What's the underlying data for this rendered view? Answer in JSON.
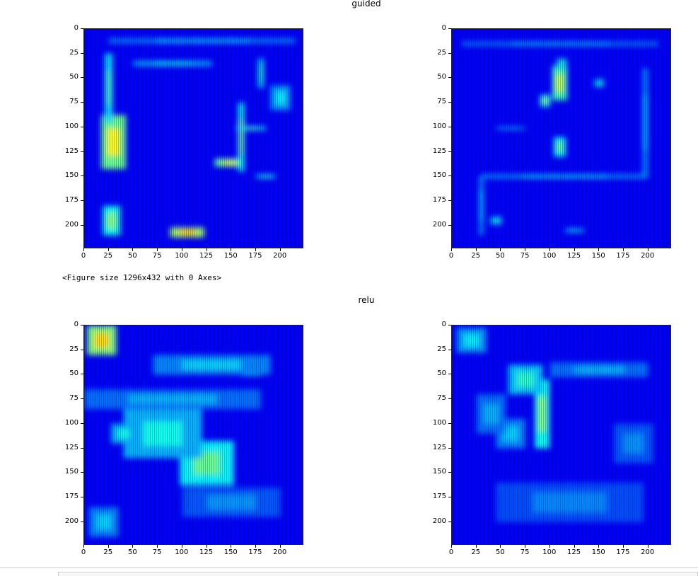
{
  "figures": [
    {
      "title": "guided"
    },
    {
      "title": "relu"
    }
  ],
  "output_text": "<Figure size 1296x432 with 0 Axes>",
  "chart_data": [
    {
      "type": "heatmap",
      "figure": "guided",
      "panel": "left",
      "xlim": [
        0,
        224
      ],
      "ylim": [
        224,
        0
      ],
      "xticks": [
        "0",
        "25",
        "50",
        "75",
        "100",
        "125",
        "150",
        "175",
        "200"
      ],
      "yticks": [
        "0",
        "25",
        "50",
        "75",
        "100",
        "125",
        "150",
        "175",
        "200"
      ],
      "colormap": "jet",
      "hotspots": [
        {
          "x": 30,
          "y": 115,
          "w": 25,
          "h": 55,
          "v": 0.8
        },
        {
          "x": 25,
          "y": 60,
          "w": 8,
          "h": 70,
          "v": 0.5
        },
        {
          "x": 28,
          "y": 195,
          "w": 18,
          "h": 30,
          "v": 0.6
        },
        {
          "x": 105,
          "y": 207,
          "w": 35,
          "h": 10,
          "v": 0.9
        },
        {
          "x": 148,
          "y": 136,
          "w": 30,
          "h": 8,
          "v": 0.75
        },
        {
          "x": 160,
          "y": 110,
          "w": 6,
          "h": 70,
          "v": 0.6
        },
        {
          "x": 170,
          "y": 101,
          "w": 30,
          "h": 4,
          "v": 0.5
        },
        {
          "x": 185,
          "y": 150,
          "w": 20,
          "h": 4,
          "v": 0.45
        },
        {
          "x": 90,
          "y": 35,
          "w": 80,
          "h": 5,
          "v": 0.4
        },
        {
          "x": 180,
          "y": 45,
          "w": 6,
          "h": 30,
          "v": 0.45
        },
        {
          "x": 200,
          "y": 70,
          "w": 20,
          "h": 25,
          "v": 0.35
        },
        {
          "x": 120,
          "y": 12,
          "w": 190,
          "h": 5,
          "v": 0.3
        }
      ]
    },
    {
      "type": "heatmap",
      "figure": "guided",
      "panel": "right",
      "xlim": [
        0,
        224
      ],
      "ylim": [
        224,
        0
      ],
      "xticks": [
        "0",
        "25",
        "50",
        "75",
        "100",
        "125",
        "150",
        "175",
        "200"
      ],
      "yticks": [
        "0",
        "25",
        "50",
        "75",
        "100",
        "125",
        "150",
        "175",
        "200"
      ],
      "colormap": "jet",
      "hotspots": [
        {
          "x": 110,
          "y": 55,
          "w": 15,
          "h": 35,
          "v": 0.7
        },
        {
          "x": 95,
          "y": 73,
          "w": 10,
          "h": 12,
          "v": 0.6
        },
        {
          "x": 110,
          "y": 120,
          "w": 12,
          "h": 20,
          "v": 0.55
        },
        {
          "x": 112,
          "y": 35,
          "w": 10,
          "h": 10,
          "v": 0.45
        },
        {
          "x": 150,
          "y": 55,
          "w": 10,
          "h": 8,
          "v": 0.4
        },
        {
          "x": 115,
          "y": 150,
          "w": 170,
          "h": 4,
          "v": 0.35
        },
        {
          "x": 197,
          "y": 95,
          "w": 5,
          "h": 110,
          "v": 0.35
        },
        {
          "x": 30,
          "y": 180,
          "w": 5,
          "h": 60,
          "v": 0.3
        },
        {
          "x": 45,
          "y": 195,
          "w": 12,
          "h": 8,
          "v": 0.4
        },
        {
          "x": 125,
          "y": 205,
          "w": 20,
          "h": 4,
          "v": 0.35
        },
        {
          "x": 110,
          "y": 15,
          "w": 200,
          "h": 4,
          "v": 0.3
        },
        {
          "x": 60,
          "y": 101,
          "w": 30,
          "h": 3,
          "v": 0.3
        }
      ]
    },
    {
      "type": "heatmap",
      "figure": "relu",
      "panel": "left",
      "xlim": [
        0,
        224
      ],
      "ylim": [
        224,
        0
      ],
      "xticks": [
        "0",
        "25",
        "50",
        "75",
        "100",
        "125",
        "150",
        "175",
        "200"
      ],
      "yticks": [
        "0",
        "25",
        "50",
        "75",
        "100",
        "125",
        "150",
        "175",
        "200"
      ],
      "colormap": "jet",
      "hotspots": [
        {
          "x": 18,
          "y": 15,
          "w": 30,
          "h": 30,
          "v": 0.85
        },
        {
          "x": 170,
          "y": 42,
          "w": 20,
          "h": 18,
          "v": 0.55
        },
        {
          "x": 170,
          "y": 75,
          "w": 15,
          "h": 15,
          "v": 0.5
        },
        {
          "x": 125,
          "y": 140,
          "w": 55,
          "h": 45,
          "v": 0.55
        },
        {
          "x": 80,
          "y": 110,
          "w": 80,
          "h": 50,
          "v": 0.4
        },
        {
          "x": 40,
          "y": 110,
          "w": 25,
          "h": 20,
          "v": 0.4
        },
        {
          "x": 20,
          "y": 200,
          "w": 30,
          "h": 30,
          "v": 0.3
        },
        {
          "x": 130,
          "y": 40,
          "w": 120,
          "h": 20,
          "v": 0.3
        },
        {
          "x": 90,
          "y": 75,
          "w": 180,
          "h": 20,
          "v": 0.25
        },
        {
          "x": 150,
          "y": 180,
          "w": 100,
          "h": 30,
          "v": 0.2
        }
      ]
    },
    {
      "type": "heatmap",
      "figure": "relu",
      "panel": "right",
      "xlim": [
        0,
        224
      ],
      "ylim": [
        224,
        0
      ],
      "xticks": [
        "0",
        "25",
        "50",
        "75",
        "100",
        "125",
        "150",
        "175",
        "200"
      ],
      "yticks": [
        "0",
        "25",
        "50",
        "75",
        "100",
        "125",
        "150",
        "175",
        "200"
      ],
      "colormap": "jet",
      "hotspots": [
        {
          "x": 92,
          "y": 90,
          "w": 15,
          "h": 70,
          "v": 0.6
        },
        {
          "x": 75,
          "y": 55,
          "w": 35,
          "h": 30,
          "v": 0.45
        },
        {
          "x": 20,
          "y": 15,
          "w": 30,
          "h": 25,
          "v": 0.35
        },
        {
          "x": 60,
          "y": 110,
          "w": 30,
          "h": 30,
          "v": 0.3
        },
        {
          "x": 150,
          "y": 45,
          "w": 100,
          "h": 15,
          "v": 0.25
        },
        {
          "x": 185,
          "y": 120,
          "w": 40,
          "h": 40,
          "v": 0.2
        },
        {
          "x": 40,
          "y": 90,
          "w": 30,
          "h": 40,
          "v": 0.25
        },
        {
          "x": 120,
          "y": 180,
          "w": 150,
          "h": 40,
          "v": 0.18
        }
      ]
    }
  ]
}
